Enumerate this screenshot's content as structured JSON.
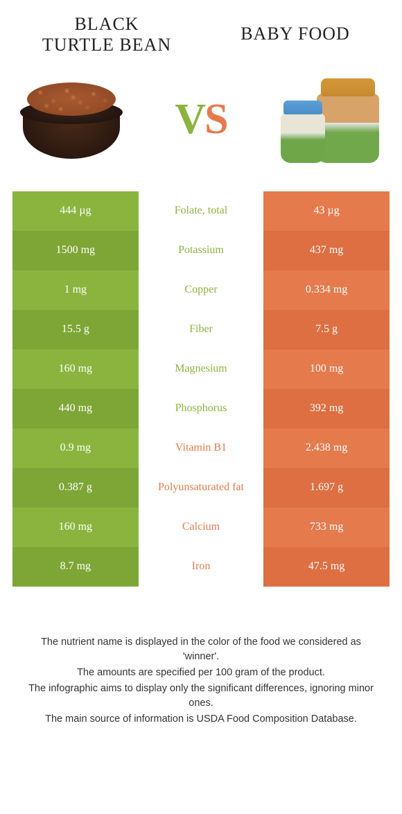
{
  "colors": {
    "green": "#8bb43f",
    "green_dark": "#7ea636",
    "orange": "#e57a4d",
    "orange_dark": "#dd6f42",
    "mid_text_green": "#8bb43f",
    "mid_text_orange": "#e57a4d"
  },
  "titles": {
    "left": "Black\nturtle bean",
    "right": "Baby food"
  },
  "vs": {
    "v": "V",
    "s": "S"
  },
  "rows": [
    {
      "left": "444 µg",
      "mid": "Folate, total",
      "right": "43 µg",
      "winner": "left"
    },
    {
      "left": "1500 mg",
      "mid": "Potassium",
      "right": "437 mg",
      "winner": "left"
    },
    {
      "left": "1 mg",
      "mid": "Copper",
      "right": "0.334 mg",
      "winner": "left"
    },
    {
      "left": "15.5 g",
      "mid": "Fiber",
      "right": "7.5 g",
      "winner": "left"
    },
    {
      "left": "160 mg",
      "mid": "Magnesium",
      "right": "100 mg",
      "winner": "left"
    },
    {
      "left": "440 mg",
      "mid": "Phosphorus",
      "right": "392 mg",
      "winner": "left"
    },
    {
      "left": "0.9 mg",
      "mid": "Vitamin B1",
      "right": "2.438 mg",
      "winner": "right"
    },
    {
      "left": "0.387 g",
      "mid": "Polyunsaturated fat",
      "right": "1.697 g",
      "winner": "right"
    },
    {
      "left": "160 mg",
      "mid": "Calcium",
      "right": "733 mg",
      "winner": "right"
    },
    {
      "left": "8.7 mg",
      "mid": "Iron",
      "right": "47.5 mg",
      "winner": "right"
    }
  ],
  "footer": [
    "The nutrient name is displayed in the color of the food we considered as 'winner'.",
    "The amounts are specified per 100 gram of the product.",
    "The infographic aims to display only the significant differences, ignoring minor ones.",
    "The main source of information is USDA Food Composition Database."
  ]
}
